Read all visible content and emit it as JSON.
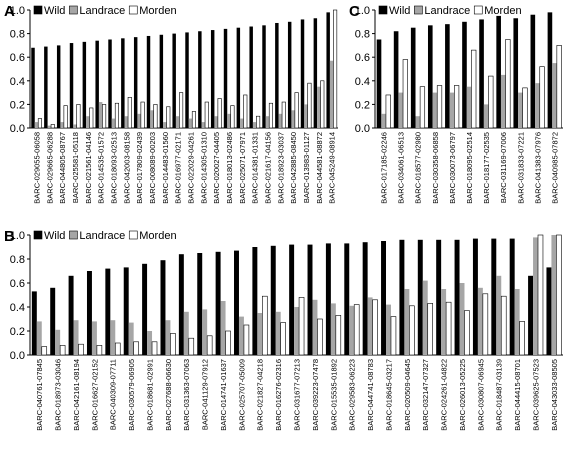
{
  "chart_data": [
    {
      "type": "bar",
      "panel": "A",
      "categories": [
        "BARC-029055-06058",
        "BARC-029665-06288",
        "BARC-044805-08767",
        "BARC-025581-05118",
        "BARC-021561-04146",
        "BARC-014535-01572",
        "BARC-018093-02513",
        "BARC-042003-08158",
        "BARC-017809-02439",
        "BARC-008089-00203",
        "BARC-014483-01560",
        "BARC-016977-02171",
        "BARC-022029-04261",
        "BARC-014305-01310",
        "BARC-020027-04405",
        "BARC-018013-02486",
        "BARC-025071-07971",
        "BARC-014381-01331",
        "BARC-021617-04156",
        "BARC-018923-03037",
        "BARC-042885-08450",
        "BARC-013983-01127",
        "BARC-044581-08872",
        "BARC-045249-08914"
      ],
      "series": [
        {
          "name": "Wild",
          "color": "#000000",
          "values": [
            0.68,
            0.69,
            0.7,
            0.72,
            0.73,
            0.74,
            0.75,
            0.76,
            0.77,
            0.78,
            0.79,
            0.8,
            0.81,
            0.82,
            0.83,
            0.84,
            0.85,
            0.86,
            0.87,
            0.89,
            0.9,
            0.92,
            0.93,
            0.98
          ]
        },
        {
          "name": "Landrace",
          "color": "#a6a6a6",
          "values": [
            0.05,
            0.02,
            0.05,
            0.03,
            0.1,
            0.22,
            0.08,
            0.1,
            0.12,
            0.15,
            0.05,
            0.1,
            0.08,
            0.05,
            0.1,
            0.12,
            0.08,
            0.05,
            0.1,
            0.12,
            0.15,
            0.2,
            0.35,
            0.57
          ]
        },
        {
          "name": "Morden",
          "color": "#ffffff",
          "values": [
            0.08,
            0.03,
            0.19,
            0.2,
            0.17,
            0.2,
            0.21,
            0.26,
            0.22,
            0.2,
            0.18,
            0.3,
            0.14,
            0.22,
            0.25,
            0.19,
            0.28,
            0.1,
            0.21,
            0.22,
            0.3,
            0.38,
            0.4,
            1.0
          ]
        }
      ],
      "ylim": [
        0,
        1
      ],
      "yticks": [
        {
          "value": 0,
          "label": "0.0"
        },
        {
          "value": 0.2,
          "label": "0.2"
        },
        {
          "value": 0.4,
          "label": "0.4"
        },
        {
          "value": 0.6,
          "label": "0.6"
        },
        {
          "value": 0.8,
          "label": "0.8"
        },
        {
          "value": 1,
          "label": "1.0"
        }
      ]
    },
    {
      "type": "bar",
      "panel": "C",
      "categories": [
        "BARC-017185-02246",
        "BARC-034061-06513",
        "BARC-018577-02980",
        "BARC-030358-06858",
        "BARC-030073-06797",
        "BARC-018095-02514",
        "BARC-018177-02535",
        "BARC-031169-07006",
        "BARC-031833-07221",
        "BARC-041383-07976",
        "BARC-040985-07872"
      ],
      "series": [
        {
          "name": "Wild",
          "color": "#000000",
          "values": [
            0.75,
            0.82,
            0.85,
            0.87,
            0.88,
            0.9,
            0.92,
            0.95,
            0.93,
            0.96,
            0.98
          ]
        },
        {
          "name": "Landrace",
          "color": "#a6a6a6",
          "values": [
            0.12,
            0.3,
            0.1,
            0.3,
            0.3,
            0.35,
            0.2,
            0.45,
            0.3,
            0.38,
            0.55
          ]
        },
        {
          "name": "Morden",
          "color": "#ffffff",
          "values": [
            0.28,
            0.58,
            0.35,
            0.36,
            0.36,
            0.66,
            0.44,
            0.75,
            0.34,
            0.52,
            0.7
          ]
        }
      ],
      "ylim": [
        0,
        1
      ],
      "yticks": [
        {
          "value": 0,
          "label": "0.0"
        },
        {
          "value": 0.2,
          "label": "0.2"
        },
        {
          "value": 0.4,
          "label": "0.4"
        },
        {
          "value": 0.6,
          "label": "0.6"
        },
        {
          "value": 0.8,
          "label": "0.8"
        },
        {
          "value": 1,
          "label": "1.0"
        }
      ]
    },
    {
      "type": "bar",
      "panel": "B",
      "categories": [
        "BARC-040761-07845",
        "BARC-018973-03046",
        "BARC-042161-08194",
        "BARC-016627-02152",
        "BARC-040309-07711",
        "BARC-030579-06905",
        "BARC-018681-02991",
        "BARC-027688-06630",
        "BARC-031363-07063",
        "BARC-041129-07912",
        "BARC-014741-01637",
        "BARC-025707-05009",
        "BARC-021827-04218",
        "BARC-016276-02316",
        "BARC-031677-07213",
        "BARC-039223-07478",
        "BARC-015535-01892",
        "BARC-029583-06223",
        "BARC-044741-08783",
        "BARC-018645-03217",
        "BARC-020509-04645",
        "BARC-032147-07327",
        "BARC-024261-04822",
        "BARC-026013-05225",
        "BARC-030807-06945",
        "BARC-018487-03139",
        "BARC-044415-08701",
        "BARC-039625-07523",
        "BARC-043033-08505"
      ],
      "series": [
        {
          "name": "Wild",
          "color": "#000000",
          "values": [
            0.53,
            0.56,
            0.66,
            0.7,
            0.72,
            0.73,
            0.76,
            0.79,
            0.84,
            0.85,
            0.86,
            0.87,
            0.9,
            0.91,
            0.92,
            0.92,
            0.93,
            0.93,
            0.94,
            0.95,
            0.96,
            0.96,
            0.96,
            0.96,
            0.97,
            0.97,
            0.97,
            0.66,
            0.73
          ]
        },
        {
          "name": "Landrace",
          "color": "#a6a6a6",
          "values": [
            0.28,
            0.21,
            0.29,
            0.28,
            0.29,
            0.27,
            0.2,
            0.29,
            0.36,
            0.38,
            0.45,
            0.32,
            0.35,
            0.36,
            0.4,
            0.46,
            0.43,
            0.41,
            0.48,
            0.42,
            0.55,
            0.62,
            0.55,
            0.6,
            0.56,
            0.66,
            0.55,
            0.98,
            1.0
          ]
        },
        {
          "name": "Morden",
          "color": "#ffffff",
          "values": [
            0.07,
            0.08,
            0.09,
            0.08,
            0.1,
            0.11,
            0.11,
            0.18,
            0.14,
            0.16,
            0.2,
            0.25,
            0.49,
            0.27,
            0.48,
            0.3,
            0.33,
            0.42,
            0.46,
            0.32,
            0.41,
            0.43,
            0.44,
            0.37,
            0.51,
            0.49,
            0.28,
            1.0,
            1.0
          ]
        }
      ],
      "ylim": [
        0,
        1
      ],
      "yticks": [
        {
          "value": 0,
          "label": "0.0"
        },
        {
          "value": 0.2,
          "label": "0.2"
        },
        {
          "value": 0.4,
          "label": "0.4"
        },
        {
          "value": 0.6,
          "label": "0.6"
        },
        {
          "value": 0.8,
          "label": "0.8"
        },
        {
          "value": 1,
          "label": "1.0"
        }
      ]
    }
  ]
}
